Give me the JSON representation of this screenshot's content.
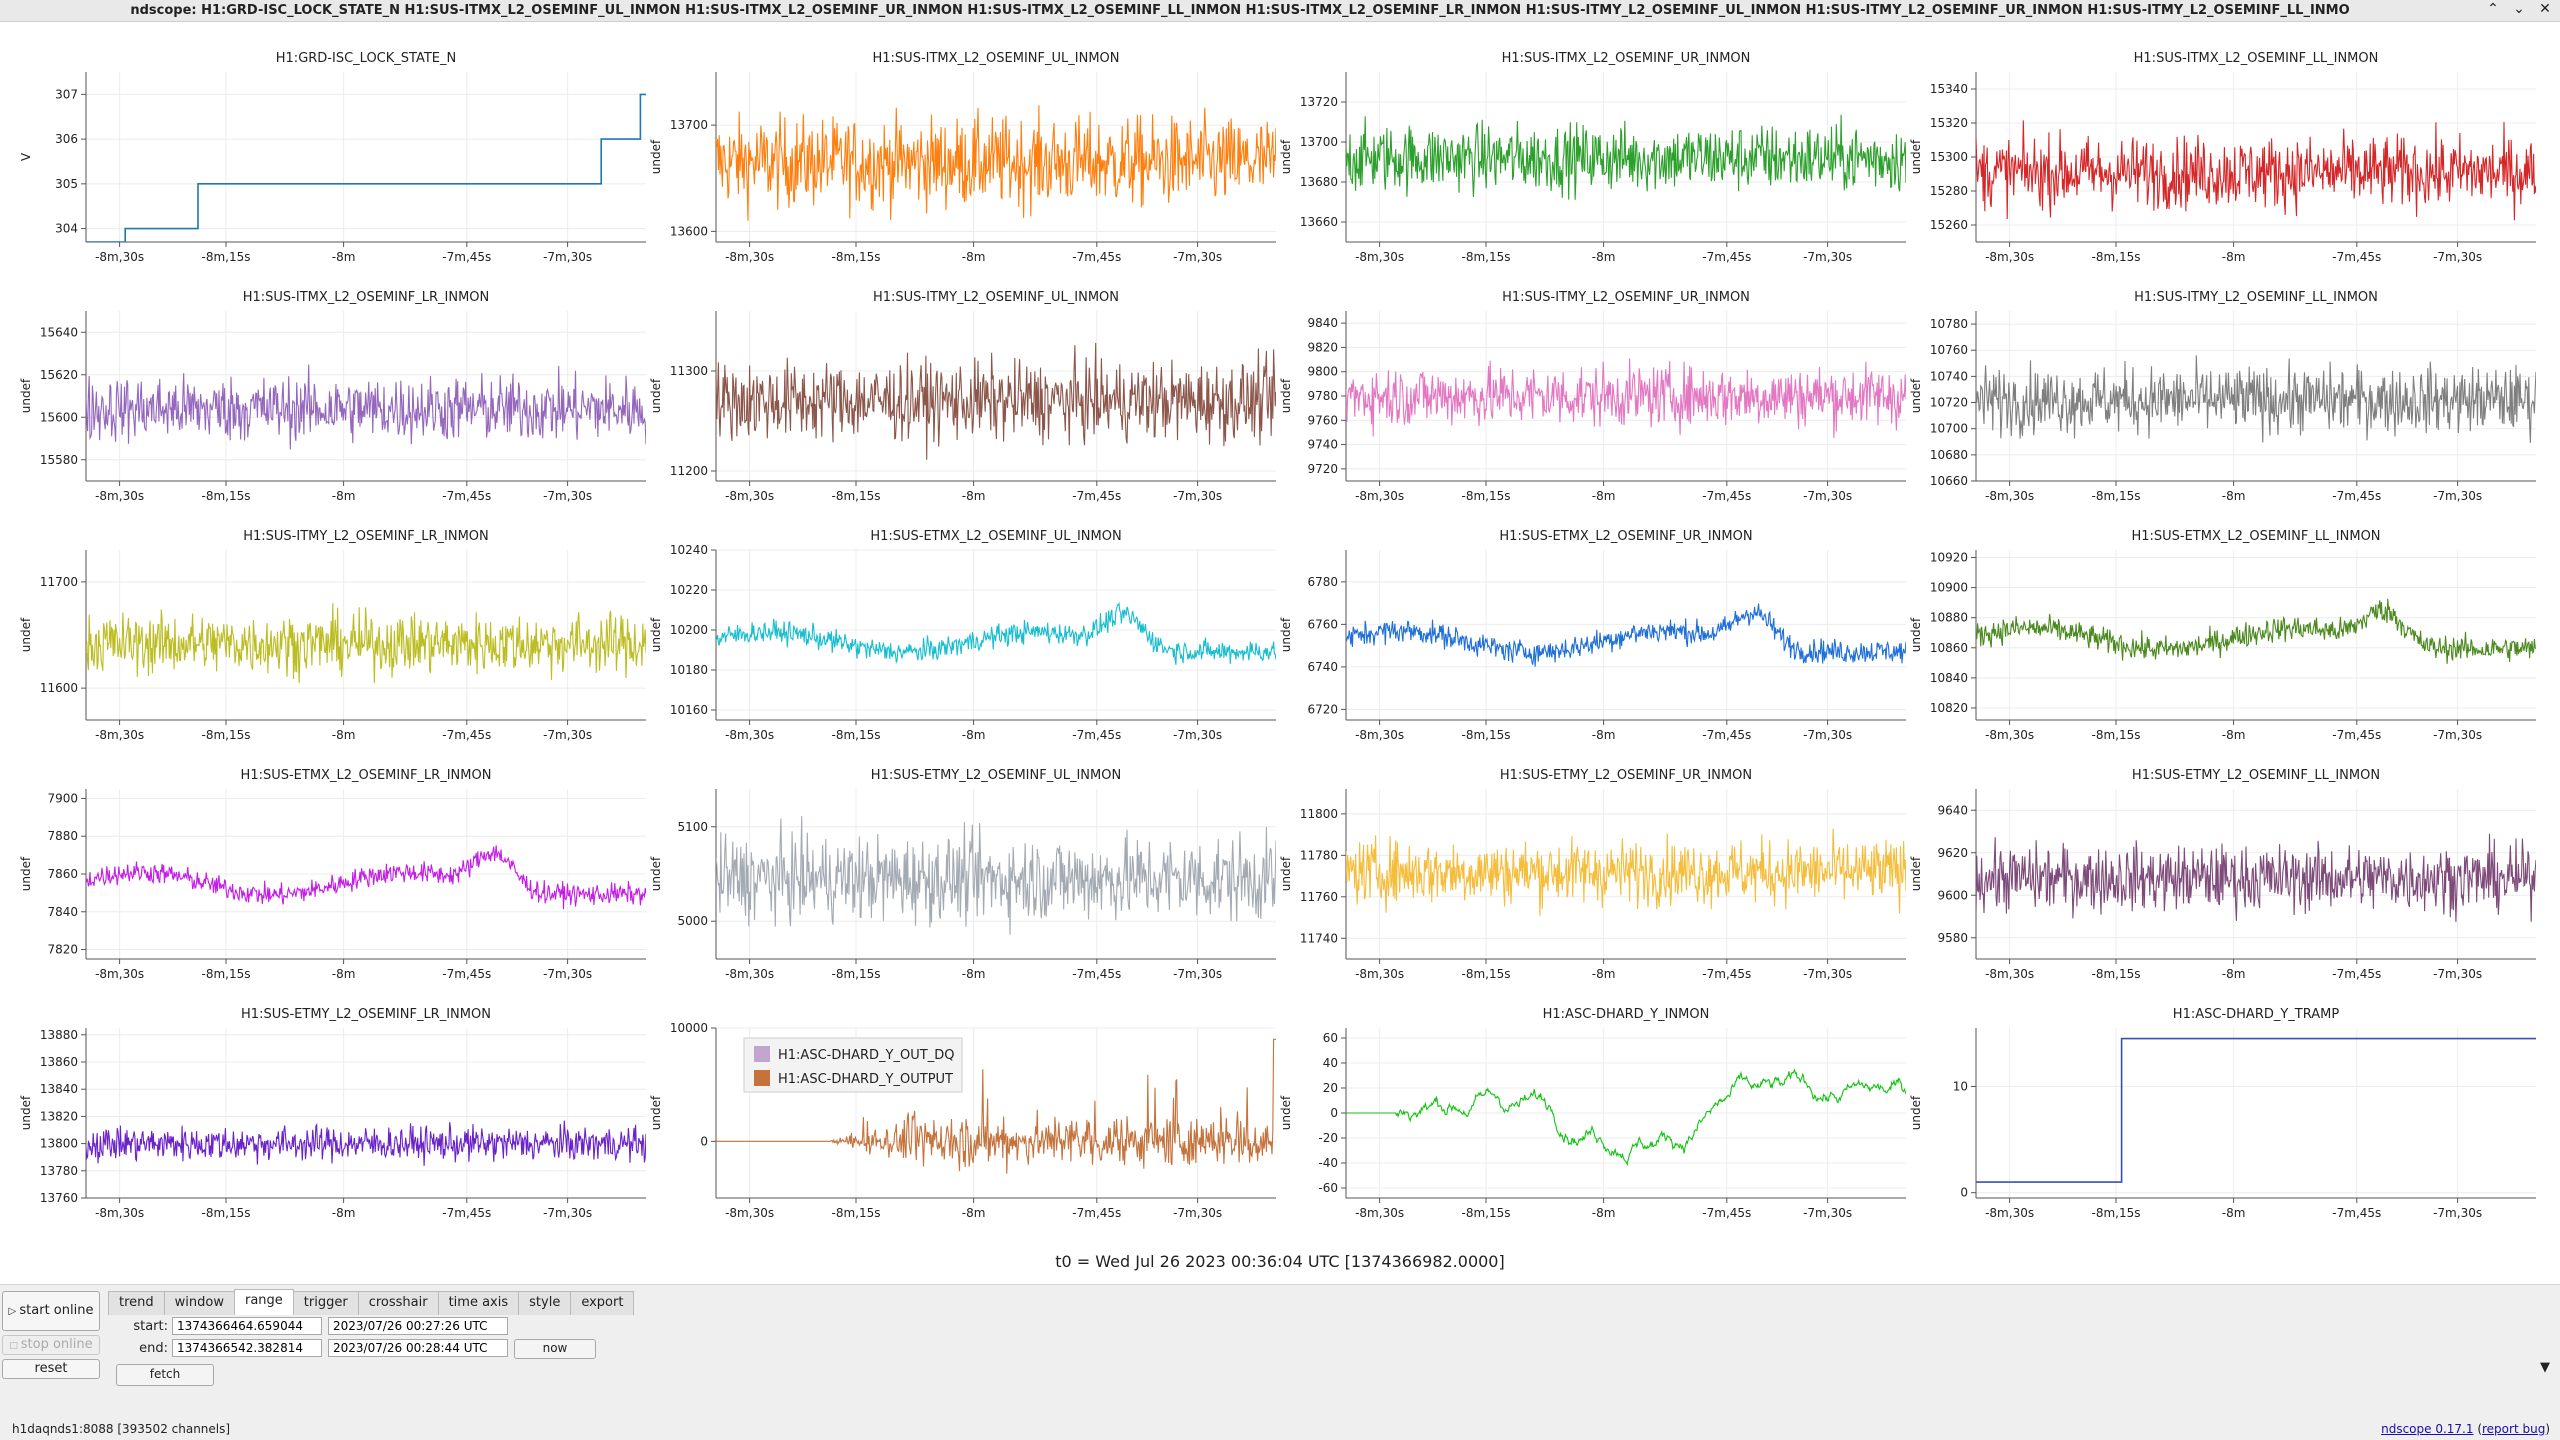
{
  "window": {
    "title": "ndscope: H1:GRD-ISC_LOCK_STATE_N H1:SUS-ITMX_L2_OSEMINF_UL_INMON H1:SUS-ITMX_L2_OSEMINF_UR_INMON H1:SUS-ITMX_L2_OSEMINF_LL_INMON H1:SUS-ITMX_L2_OSEMINF_LR_INMON H1:SUS-ITMY_L2_OSEMINF_UL_INMON H1:SUS-ITMY_L2_OSEMINF_UR_INMON H1:SUS-ITMY_L2_OSEMINF_LL_INMO",
    "buttons": {
      "menu": "⌃",
      "minimize": "⌄",
      "close": "✕"
    }
  },
  "t0_label": "t0 = Wed Jul 26 2023 00:36:04 UTC [1374366982.0000]",
  "x_ticks": [
    "-8m,30s",
    "-8m,15s",
    "-8m",
    "-7m,45s",
    "-7m,30s"
  ],
  "chart_data": [
    {
      "type": "line",
      "title": "H1:GRD-ISC_LOCK_STATE_N",
      "ylabel": "V",
      "yticks": [
        "304",
        "305",
        "306",
        "307"
      ],
      "ylim": [
        303.7,
        307.5
      ],
      "color": "#1f77b4",
      "kind": "step",
      "steps": [
        [
          0,
          303.7
        ],
        [
          0.07,
          304
        ],
        [
          0.2,
          305
        ],
        [
          0.92,
          306
        ],
        [
          0.99,
          307
        ],
        [
          1,
          307
        ]
      ]
    },
    {
      "type": "line",
      "title": "H1:SUS-ITMX_L2_OSEMINF_UL_INMON",
      "ylabel": "undef",
      "yticks": [
        "13600",
        "13700"
      ],
      "ylim": [
        13590,
        13750
      ],
      "color": "#ff7f0e",
      "kind": "noise",
      "base": 13665,
      "amp": 30
    },
    {
      "type": "line",
      "title": "H1:SUS-ITMX_L2_OSEMINF_UR_INMON",
      "ylabel": "undef",
      "yticks": [
        "13660",
        "13680",
        "13700",
        "13720"
      ],
      "ylim": [
        13650,
        13735
      ],
      "color": "#2ca02c",
      "kind": "noise",
      "base": 13692,
      "amp": 12
    },
    {
      "type": "line",
      "title": "H1:SUS-ITMX_L2_OSEMINF_LL_INMON",
      "ylabel": "undef",
      "yticks": [
        "15260",
        "15280",
        "15300",
        "15320",
        "15340"
      ],
      "ylim": [
        15250,
        15350
      ],
      "color": "#d62728",
      "kind": "noise",
      "base": 15291,
      "amp": 15
    },
    {
      "type": "line",
      "title": "H1:SUS-ITMX_L2_OSEMINF_LR_INMON",
      "ylabel": "undef",
      "yticks": [
        "15580",
        "15600",
        "15620",
        "15640"
      ],
      "ylim": [
        15570,
        15650
      ],
      "color": "#9467bd",
      "kind": "noise",
      "base": 15604,
      "amp": 11
    },
    {
      "type": "line",
      "title": "H1:SUS-ITMY_L2_OSEMINF_UL_INMON",
      "ylabel": "undef",
      "yticks": [
        "11200",
        "11300"
      ],
      "ylim": [
        11190,
        11360
      ],
      "color": "#8c564b",
      "kind": "noise",
      "base": 11270,
      "amp": 28
    },
    {
      "type": "line",
      "title": "H1:SUS-ITMY_L2_OSEMINF_UR_INMON",
      "ylabel": "undef",
      "yticks": [
        "9720",
        "9740",
        "9760",
        "9780",
        "9800",
        "9820",
        "9840"
      ],
      "ylim": [
        9710,
        9850
      ],
      "color": "#e377c2",
      "kind": "noise",
      "base": 9780,
      "amp": 18
    },
    {
      "type": "line",
      "title": "H1:SUS-ITMY_L2_OSEMINF_LL_INMON",
      "ylabel": "undef",
      "yticks": [
        "10660",
        "10680",
        "10700",
        "10720",
        "10740",
        "10760",
        "10780"
      ],
      "ylim": [
        10660,
        10790
      ],
      "color": "#7f7f7f",
      "kind": "noise",
      "base": 10722,
      "amp": 18
    },
    {
      "type": "line",
      "title": "H1:SUS-ITMY_L2_OSEMINF_LR_INMON",
      "ylabel": "undef",
      "yticks": [
        "11600",
        "11700"
      ],
      "ylim": [
        11570,
        11730
      ],
      "color": "#bcbd22",
      "kind": "noise",
      "base": 11642,
      "amp": 20
    },
    {
      "type": "line",
      "title": "H1:SUS-ETMX_L2_OSEMINF_UL_INMON",
      "ylabel": "undef",
      "yticks": [
        "10160",
        "10180",
        "10200",
        "10220",
        "10240"
      ],
      "ylim": [
        10155,
        10240
      ],
      "color": "#17becf",
      "kind": "drift",
      "base": 10194,
      "amp": 4,
      "drift": 10
    },
    {
      "type": "line",
      "title": "H1:SUS-ETMX_L2_OSEMINF_UR_INMON",
      "ylabel": "undef",
      "yticks": [
        "6720",
        "6740",
        "6760",
        "6780"
      ],
      "ylim": [
        6715,
        6795
      ],
      "color": "#1f6fd9",
      "kind": "drift",
      "base": 6752,
      "amp": 4,
      "drift": 10
    },
    {
      "type": "line",
      "title": "H1:SUS-ETMX_L2_OSEMINF_LL_INMON",
      "ylabel": "undef",
      "yticks": [
        "10820",
        "10840",
        "10860",
        "10880",
        "10900",
        "10920"
      ],
      "ylim": [
        10812,
        10925
      ],
      "color": "#4b8a1f",
      "kind": "drift",
      "base": 10866,
      "amp": 6,
      "drift": 14
    },
    {
      "type": "line",
      "title": "H1:SUS-ETMX_L2_OSEMINF_LR_INMON",
      "ylabel": "undef",
      "yticks": [
        "7820",
        "7840",
        "7860",
        "7880",
        "7900"
      ],
      "ylim": [
        7815,
        7905
      ],
      "color": "#c41ee6",
      "kind": "drift",
      "base": 7855,
      "amp": 4,
      "drift": 12
    },
    {
      "type": "line",
      "title": "H1:SUS-ETMY_L2_OSEMINF_UL_INMON",
      "ylabel": "undef",
      "yticks": [
        "5000",
        "5100"
      ],
      "ylim": [
        4960,
        5140
      ],
      "color": "#a3aab3",
      "kind": "noise",
      "base": 5045,
      "amp": 32
    },
    {
      "type": "line",
      "title": "H1:SUS-ETMY_L2_OSEMINF_UR_INMON",
      "ylabel": "undef",
      "yticks": [
        "11740",
        "11760",
        "11780",
        "11800"
      ],
      "ylim": [
        11730,
        11812
      ],
      "color": "#f5bd3c",
      "kind": "noise",
      "base": 11772,
      "amp": 11
    },
    {
      "type": "line",
      "title": "H1:SUS-ETMY_L2_OSEMINF_LL_INMON",
      "ylabel": "undef",
      "yticks": [
        "9580",
        "9600",
        "9620",
        "9640"
      ],
      "ylim": [
        9570,
        9650
      ],
      "color": "#7e4a7a",
      "kind": "noise",
      "base": 9608,
      "amp": 11
    },
    {
      "type": "line",
      "title": "H1:SUS-ETMY_L2_OSEMINF_LR_INMON",
      "ylabel": "undef",
      "yticks": [
        "13760",
        "13780",
        "13800",
        "13820",
        "13840",
        "13860",
        "13880"
      ],
      "ylim": [
        13760,
        13885
      ],
      "color": "#6a22c9",
      "kind": "noise",
      "base": 13800,
      "amp": 9
    },
    {
      "type": "line",
      "title": "",
      "ylabel": "undef",
      "yticks": [
        "0",
        "10000"
      ],
      "ylim": [
        -5000,
        10000
      ],
      "color": "#c4733c",
      "kind": "burst",
      "legend": [
        {
          "name": "H1:ASC-DHARD_Y_OUT_DQ",
          "color": "#c3a6cf"
        },
        {
          "name": "H1:ASC-DHARD_Y_OUTPUT",
          "color": "#c4733c"
        }
      ]
    },
    {
      "type": "line",
      "title": "H1:ASC-DHARD_Y_INMON",
      "ylabel": "undef",
      "yticks": [
        "-60",
        "-40",
        "-20",
        "0",
        "20",
        "40",
        "60"
      ],
      "ylim": [
        -68,
        68
      ],
      "color": "#12c312",
      "kind": "walk"
    },
    {
      "type": "line",
      "title": "H1:ASC-DHARD_Y_TRAMP",
      "ylabel": "undef",
      "yticks": [
        "0",
        "10"
      ],
      "ylim": [
        -0.5,
        15.5
      ],
      "color": "#3a4fb5",
      "kind": "step",
      "steps": [
        [
          0,
          1
        ],
        [
          0.26,
          1
        ],
        [
          0.26,
          14.5
        ],
        [
          1,
          14.5
        ]
      ]
    }
  ],
  "controls": {
    "start_online": "start online",
    "stop_online": "stop online",
    "reset": "reset",
    "fetch": "fetch",
    "now": "now",
    "tabs": [
      "trend",
      "window",
      "range",
      "trigger",
      "crosshair",
      "time axis",
      "style",
      "export"
    ],
    "active_tab": "range",
    "start_label": "start:",
    "end_label": "end:",
    "start_gps": "1374366464.659044",
    "start_utc": "2023/07/26 00:27:26 UTC",
    "end_gps": "1374366542.382814",
    "end_utc": "2023/07/26 00:28:44 UTC",
    "dropdown": "▼"
  },
  "status": {
    "server": "h1daqnds1:8088  [393502 channels]",
    "version": "ndscope 0.17.1",
    "report": "report bug"
  }
}
